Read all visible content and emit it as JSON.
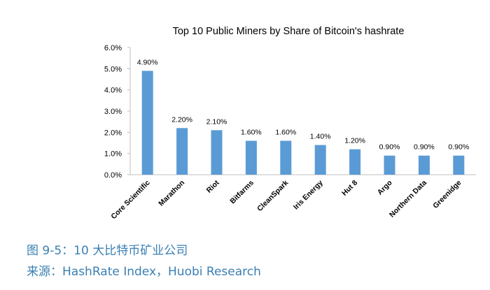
{
  "chart_data": {
    "type": "bar",
    "title": "Top 10 Public Miners by Share of Bitcoin's hashrate",
    "xlabel": "",
    "ylabel": "",
    "categories": [
      "Core Scientific",
      "Marathon",
      "Riot",
      "Bitfarms",
      "CleanSpark",
      "Iris Energy",
      "Hut 8",
      "Argo",
      "Northern Data",
      "Greenidge"
    ],
    "values": [
      4.9,
      2.2,
      2.1,
      1.6,
      1.6,
      1.4,
      1.2,
      0.9,
      0.9,
      0.9
    ],
    "value_labels": [
      "4.90%",
      "2.20%",
      "2.10%",
      "1.60%",
      "1.60%",
      "1.40%",
      "1.20%",
      "0.90%",
      "0.90%",
      "0.90%"
    ],
    "yticks": [
      "0.0%",
      "1.0%",
      "2.0%",
      "3.0%",
      "4.0%",
      "5.0%",
      "6.0%"
    ],
    "ylim": [
      0,
      6
    ],
    "grid": false,
    "legend": "none",
    "bar_color": "#5b9bd5"
  },
  "captions": {
    "figure": "图 9-5：10 大比特币矿业公司",
    "source": "来源：HashRate Index，Huobi Research"
  },
  "caption_color": "#3a7fb3"
}
